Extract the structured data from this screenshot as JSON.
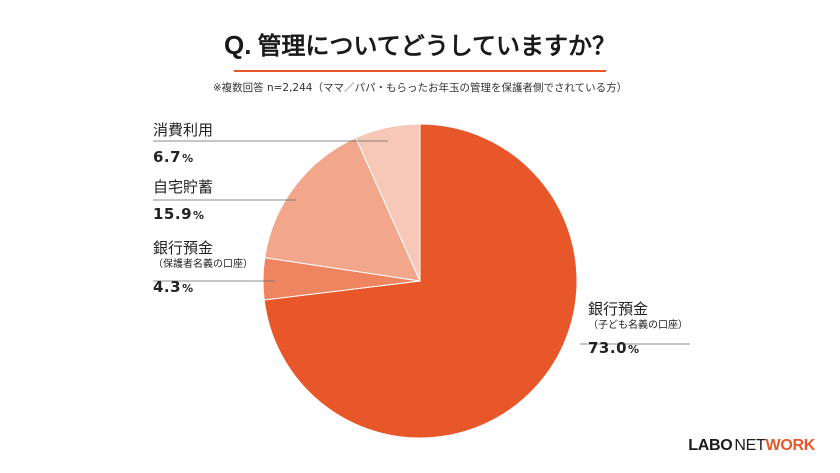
{
  "header": {
    "q_prefix": "Q.",
    "title": "管理についてどうしていますか？",
    "note": "※複数回答 n=2,244（ママ／パパ・もらったお年玉の管理を保護者側でされている方）"
  },
  "logo": {
    "part1": "LABO",
    "part2": "NET",
    "part3": "WORK"
  },
  "colors": {
    "accent": "#e8572a"
  },
  "chart_data": {
    "type": "pie",
    "start_angle_deg": 0,
    "direction": "clockwise",
    "slices": [
      {
        "name": "銀行預金",
        "sub": "（子ども名義の口座）",
        "value": 73.0,
        "value_text": "73.0",
        "color": "#e8572a"
      },
      {
        "name": "銀行預金",
        "sub": "（保護者名義の口座）",
        "value": 4.3,
        "value_text": "4.3",
        "color": "#ee8560"
      },
      {
        "name": "自宅貯蓄",
        "sub": "",
        "value": 15.9,
        "value_text": "15.9",
        "color": "#f2a68c"
      },
      {
        "name": "消費利用",
        "sub": "",
        "value": 6.7,
        "value_text": "6.7",
        "color": "#f7c8b8"
      }
    ],
    "unit": "%"
  }
}
